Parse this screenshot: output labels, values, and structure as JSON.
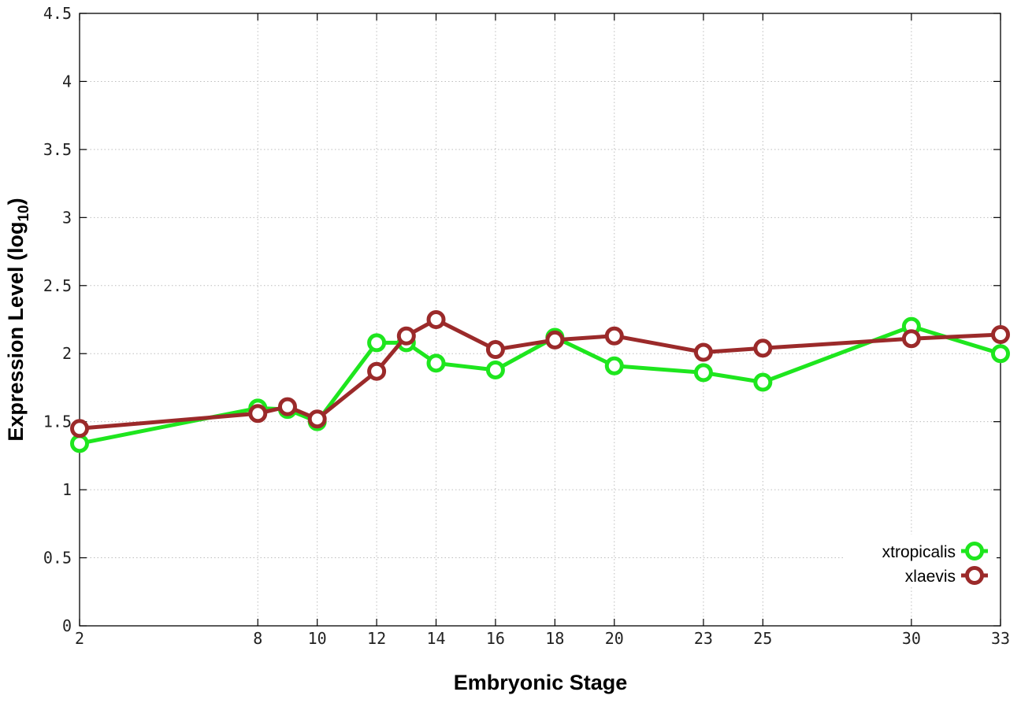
{
  "chart_data": {
    "type": "line",
    "xlabel": "Embryonic Stage",
    "ylabel": "Expression Level (log",
    "ylabel_subscript": "10",
    "ylabel_close": ")",
    "xlim": [
      2,
      33
    ],
    "ylim": [
      0,
      4.5
    ],
    "x_ticks": [
      2,
      8,
      10,
      12,
      14,
      16,
      18,
      20,
      23,
      25,
      30,
      33
    ],
    "x_tick_labels": [
      "2",
      "8",
      "10",
      "12",
      "14",
      "16",
      "18",
      "20",
      "23",
      "25",
      "30",
      "33"
    ],
    "y_ticks": [
      0,
      0.5,
      1,
      1.5,
      2,
      2.5,
      3,
      3.5,
      4,
      4.5
    ],
    "y_tick_labels": [
      "0",
      "0.5",
      "1",
      "1.5",
      "2",
      "2.5",
      "3",
      "3.5",
      "4",
      "4.5"
    ],
    "grid": true,
    "legend_position": "bottom-right",
    "series": [
      {
        "name": "xtropicalis",
        "color": "#1ee61e",
        "x": [
          2,
          8,
          9,
          10,
          12,
          13,
          14,
          16,
          18,
          20,
          23,
          25,
          30,
          33
        ],
        "y": [
          1.34,
          1.6,
          1.59,
          1.5,
          2.08,
          2.08,
          1.93,
          1.88,
          2.12,
          1.91,
          1.86,
          1.79,
          2.2,
          2.0
        ]
      },
      {
        "name": "xlaevis",
        "color": "#9b2a2a",
        "x": [
          2,
          8,
          9,
          10,
          12,
          13,
          14,
          16,
          18,
          20,
          23,
          25,
          30,
          33
        ],
        "y": [
          1.45,
          1.56,
          1.61,
          1.52,
          1.87,
          2.13,
          2.25,
          2.03,
          2.1,
          2.13,
          2.01,
          2.04,
          2.11,
          2.14
        ]
      }
    ]
  }
}
